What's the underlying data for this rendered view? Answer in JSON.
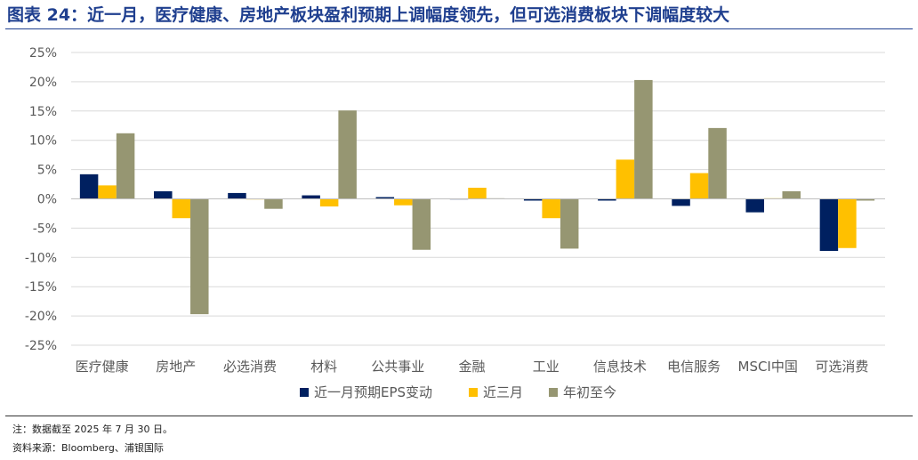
{
  "figure": {
    "label": "图表 24：",
    "title": "近一月，医疗健康、房地产板块盈利预期上调幅度领先，但可选消费板块下调幅度较大"
  },
  "notes": {
    "note": "注：数据截至 2025 年 7 月 30 日。",
    "source": "资料来源：Bloomberg、浦银国际"
  },
  "chart_data": {
    "type": "bar",
    "categories": [
      "医疗健康",
      "房地产",
      "必选消费",
      "材料",
      "公共事业",
      "金融",
      "工业",
      "信息技术",
      "电信服务",
      "MSCI中国",
      "可选消费"
    ],
    "series": [
      {
        "name": "近一月预期EPS变动",
        "color": "#002060",
        "values": [
          4.2,
          1.3,
          1.0,
          0.6,
          0.3,
          -0.1,
          -0.3,
          -0.3,
          -1.2,
          -2.3,
          -8.9
        ]
      },
      {
        "name": "近三月",
        "color": "#FFC000",
        "values": [
          2.3,
          -3.3,
          -0.1,
          -1.3,
          -1.1,
          1.9,
          -3.3,
          6.7,
          4.4,
          0.1,
          -8.4
        ]
      },
      {
        "name": "年初至今",
        "color": "#969672",
        "values": [
          11.2,
          -19.7,
          -1.7,
          15.1,
          -8.7,
          0.1,
          -8.5,
          20.3,
          12.1,
          1.3,
          -0.3
        ]
      }
    ],
    "yticks": [
      "25%",
      "20%",
      "15%",
      "10%",
      "5%",
      "0%",
      "-5%",
      "-10%",
      "-15%",
      "-20%",
      "-25%"
    ],
    "ylim": [
      -25,
      25
    ],
    "ytick_step": 5,
    "grid": true,
    "legend_position": "bottom"
  }
}
